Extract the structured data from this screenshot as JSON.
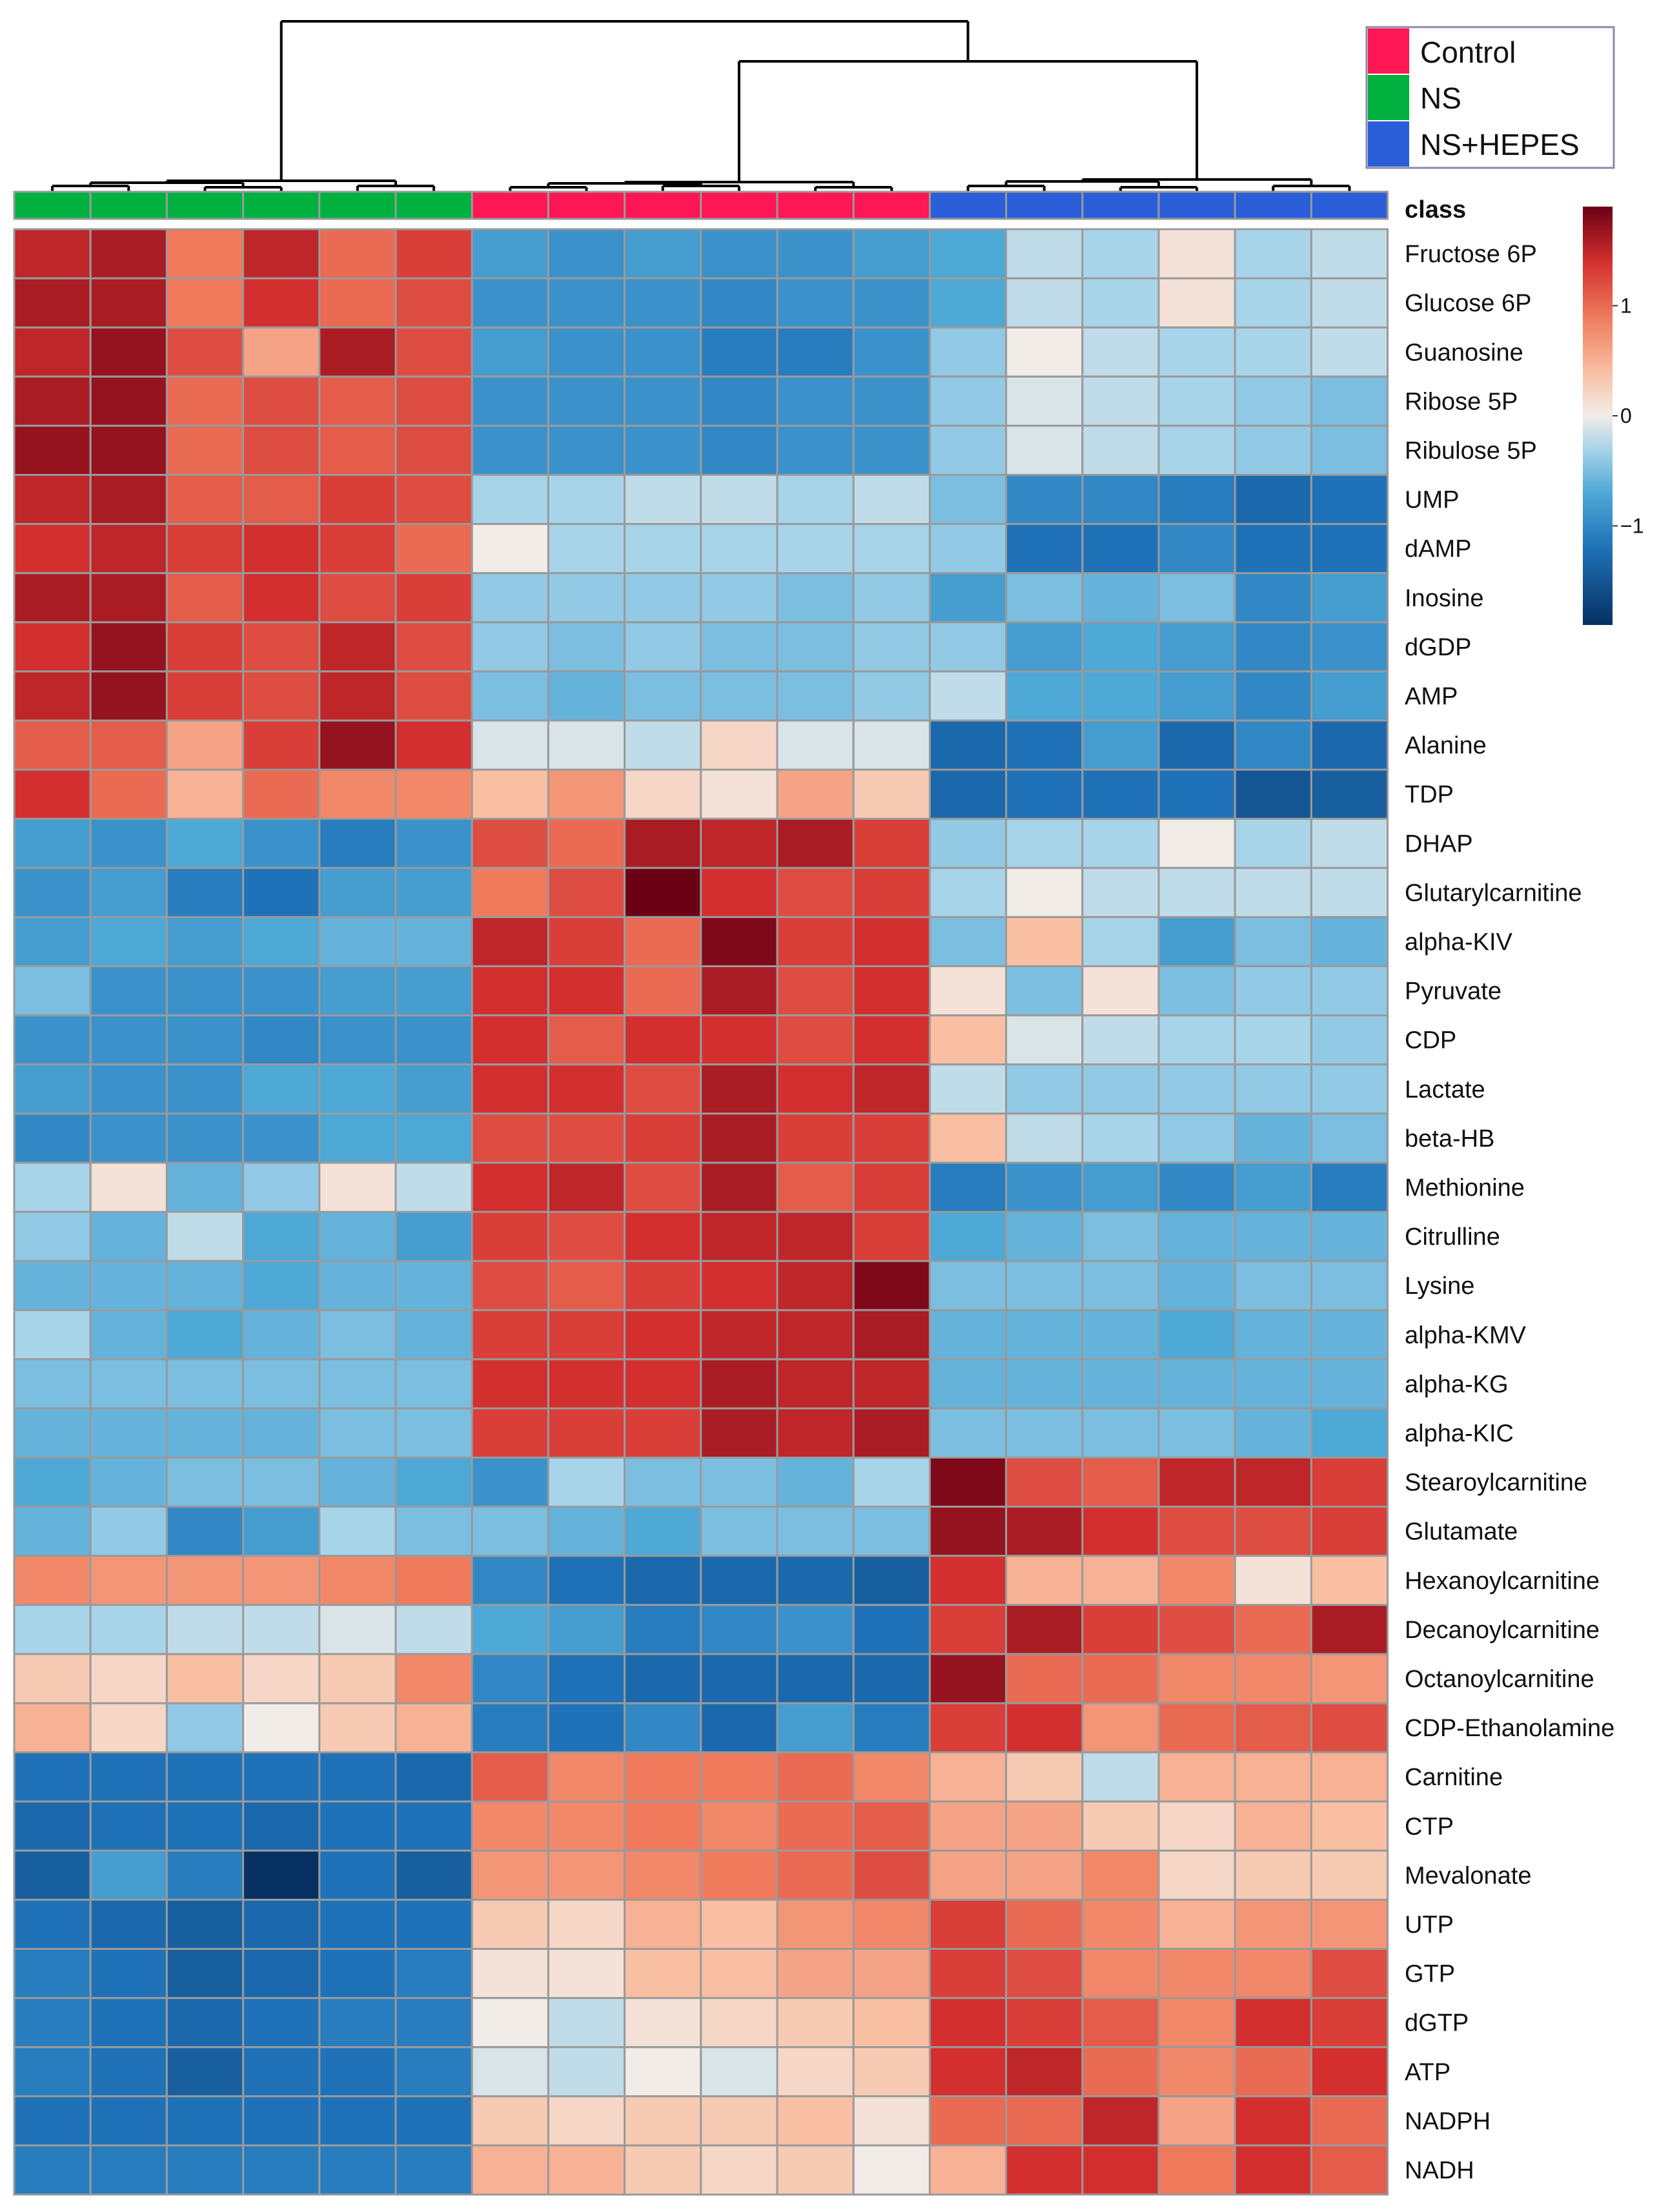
{
  "chart_data": {
    "type": "heatmap",
    "title": "",
    "class_label": "class",
    "groups": [
      {
        "name": "NS",
        "color": "#00b140"
      },
      {
        "name": "Control",
        "color": "#ff1654"
      },
      {
        "name": "NS+HEPES",
        "color": "#2a5fd9"
      }
    ],
    "legend_order": [
      "Control",
      "NS",
      "NS+HEPES"
    ],
    "column_groups": [
      "NS",
      "NS",
      "NS",
      "NS",
      "NS",
      "NS",
      "Control",
      "Control",
      "Control",
      "Control",
      "Control",
      "Control",
      "NS+HEPES",
      "NS+HEPES",
      "NS+HEPES",
      "NS+HEPES",
      "NS+HEPES",
      "NS+HEPES"
    ],
    "color_scale": {
      "min": -1.9,
      "max": 1.9,
      "ticks": [
        1,
        0,
        -1
      ],
      "tick_labels": [
        "1",
        "0",
        "−1"
      ],
      "stops": [
        {
          "v": -1.9,
          "c": "#053061"
        },
        {
          "v": -1.2,
          "c": "#1f72b8"
        },
        {
          "v": -0.7,
          "c": "#4ea8d6"
        },
        {
          "v": -0.3,
          "c": "#a8d4ea"
        },
        {
          "v": 0.0,
          "c": "#f2ece8"
        },
        {
          "v": 0.4,
          "c": "#f9bfa3"
        },
        {
          "v": 0.9,
          "c": "#ef7a5c"
        },
        {
          "v": 1.4,
          "c": "#d32f2f"
        },
        {
          "v": 1.9,
          "c": "#6b0014"
        }
      ]
    },
    "rows": [
      {
        "label": "Fructose 6P",
        "values": [
          1.5,
          1.6,
          0.9,
          1.5,
          1.0,
          1.3,
          -0.8,
          -0.9,
          -0.8,
          -0.9,
          -0.9,
          -0.8,
          -0.7,
          -0.2,
          -0.3,
          0.1,
          -0.3,
          -0.2
        ]
      },
      {
        "label": "Glucose 6P",
        "values": [
          1.6,
          1.6,
          0.9,
          1.4,
          1.0,
          1.2,
          -0.9,
          -0.9,
          -0.9,
          -1.0,
          -0.9,
          -0.9,
          -0.7,
          -0.2,
          -0.3,
          0.1,
          -0.3,
          -0.2
        ]
      },
      {
        "label": "Guanosine",
        "values": [
          1.5,
          1.7,
          1.2,
          0.6,
          1.6,
          1.2,
          -0.8,
          -0.9,
          -0.9,
          -1.1,
          -1.1,
          -0.9,
          -0.4,
          0.0,
          -0.2,
          -0.3,
          -0.3,
          -0.2
        ]
      },
      {
        "label": "Ribose 5P",
        "values": [
          1.6,
          1.7,
          1.0,
          1.2,
          1.1,
          1.2,
          -0.9,
          -0.9,
          -0.9,
          -1.0,
          -0.9,
          -0.9,
          -0.4,
          -0.1,
          -0.2,
          -0.3,
          -0.4,
          -0.5
        ]
      },
      {
        "label": "Ribulose 5P",
        "values": [
          1.7,
          1.7,
          1.0,
          1.2,
          1.1,
          1.2,
          -0.9,
          -0.9,
          -0.9,
          -1.0,
          -0.9,
          -0.9,
          -0.4,
          -0.1,
          -0.2,
          -0.3,
          -0.4,
          -0.5
        ]
      },
      {
        "label": "UMP",
        "values": [
          1.5,
          1.6,
          1.1,
          1.1,
          1.3,
          1.2,
          -0.3,
          -0.3,
          -0.2,
          -0.2,
          -0.3,
          -0.2,
          -0.5,
          -1.0,
          -1.0,
          -1.1,
          -1.3,
          -1.2
        ]
      },
      {
        "label": "dAMP",
        "values": [
          1.4,
          1.5,
          1.3,
          1.4,
          1.3,
          1.0,
          0.0,
          -0.3,
          -0.3,
          -0.3,
          -0.3,
          -0.3,
          -0.4,
          -1.2,
          -1.2,
          -1.0,
          -1.2,
          -1.2
        ]
      },
      {
        "label": "Inosine",
        "values": [
          1.6,
          1.6,
          1.1,
          1.4,
          1.2,
          1.3,
          -0.4,
          -0.4,
          -0.4,
          -0.4,
          -0.5,
          -0.4,
          -0.8,
          -0.5,
          -0.6,
          -0.5,
          -1.0,
          -0.8
        ]
      },
      {
        "label": "dGDP",
        "values": [
          1.4,
          1.7,
          1.3,
          1.2,
          1.5,
          1.2,
          -0.4,
          -0.5,
          -0.4,
          -0.5,
          -0.5,
          -0.4,
          -0.4,
          -0.8,
          -0.7,
          -0.8,
          -1.0,
          -0.9
        ]
      },
      {
        "label": "AMP",
        "values": [
          1.5,
          1.7,
          1.3,
          1.2,
          1.5,
          1.2,
          -0.5,
          -0.6,
          -0.5,
          -0.5,
          -0.5,
          -0.4,
          -0.2,
          -0.7,
          -0.7,
          -0.8,
          -1.0,
          -0.8
        ]
      },
      {
        "label": "Alanine",
        "values": [
          1.1,
          1.1,
          0.6,
          1.3,
          1.7,
          1.4,
          -0.1,
          -0.1,
          -0.2,
          0.2,
          -0.1,
          -0.1,
          -1.3,
          -1.2,
          -0.8,
          -1.3,
          -1.0,
          -1.3
        ]
      },
      {
        "label": "TDP",
        "values": [
          1.4,
          1.0,
          0.5,
          1.0,
          0.8,
          0.8,
          0.4,
          0.7,
          0.2,
          0.1,
          0.6,
          0.3,
          -1.3,
          -1.2,
          -1.2,
          -1.2,
          -1.5,
          -1.4
        ]
      },
      {
        "label": "DHAP",
        "values": [
          -0.8,
          -0.9,
          -0.7,
          -0.9,
          -1.1,
          -0.9,
          1.2,
          1.0,
          1.6,
          1.5,
          1.6,
          1.3,
          -0.4,
          -0.3,
          -0.3,
          0.0,
          -0.3,
          -0.2
        ]
      },
      {
        "label": "Glutarylcarnitine",
        "values": [
          -0.9,
          -0.8,
          -1.1,
          -1.2,
          -0.8,
          -0.8,
          0.9,
          1.2,
          1.9,
          1.4,
          1.2,
          1.3,
          -0.3,
          0.0,
          -0.2,
          -0.2,
          -0.2,
          -0.2
        ]
      },
      {
        "label": "alpha-KIV",
        "values": [
          -0.8,
          -0.7,
          -0.8,
          -0.7,
          -0.6,
          -0.6,
          1.5,
          1.3,
          1.0,
          1.8,
          1.3,
          1.4,
          -0.5,
          0.4,
          -0.3,
          -0.8,
          -0.5,
          -0.6
        ]
      },
      {
        "label": "Pyruvate",
        "values": [
          -0.5,
          -0.9,
          -0.9,
          -0.9,
          -0.8,
          -0.8,
          1.4,
          1.4,
          1.0,
          1.6,
          1.2,
          1.4,
          0.1,
          -0.5,
          0.1,
          -0.5,
          -0.4,
          -0.4
        ]
      },
      {
        "label": "CDP",
        "values": [
          -0.9,
          -0.9,
          -0.9,
          -1.0,
          -0.9,
          -0.9,
          1.4,
          1.1,
          1.4,
          1.4,
          1.2,
          1.4,
          0.4,
          -0.1,
          -0.2,
          -0.3,
          -0.3,
          -0.4
        ]
      },
      {
        "label": "Lactate",
        "values": [
          -0.8,
          -0.9,
          -0.9,
          -0.7,
          -0.7,
          -0.8,
          1.4,
          1.4,
          1.2,
          1.6,
          1.4,
          1.5,
          -0.2,
          -0.4,
          -0.4,
          -0.4,
          -0.4,
          -0.4
        ]
      },
      {
        "label": "beta-HB",
        "values": [
          -1.0,
          -0.9,
          -0.9,
          -0.9,
          -0.7,
          -0.7,
          1.2,
          1.2,
          1.3,
          1.6,
          1.3,
          1.3,
          0.4,
          -0.2,
          -0.3,
          -0.4,
          -0.6,
          -0.5
        ]
      },
      {
        "label": "Methionine",
        "values": [
          -0.3,
          0.1,
          -0.6,
          -0.4,
          0.1,
          -0.2,
          1.4,
          1.5,
          1.2,
          1.6,
          1.1,
          1.3,
          -1.1,
          -0.9,
          -0.8,
          -1.0,
          -0.8,
          -1.1
        ]
      },
      {
        "label": "Citrulline",
        "values": [
          -0.4,
          -0.6,
          -0.2,
          -0.7,
          -0.6,
          -0.8,
          1.3,
          1.2,
          1.4,
          1.5,
          1.5,
          1.3,
          -0.7,
          -0.6,
          -0.5,
          -0.6,
          -0.6,
          -0.6
        ]
      },
      {
        "label": "Lysine",
        "values": [
          -0.6,
          -0.6,
          -0.6,
          -0.7,
          -0.6,
          -0.6,
          1.2,
          1.1,
          1.3,
          1.4,
          1.5,
          1.8,
          -0.5,
          -0.5,
          -0.5,
          -0.6,
          -0.5,
          -0.5
        ]
      },
      {
        "label": "alpha-KMV",
        "values": [
          -0.3,
          -0.6,
          -0.7,
          -0.6,
          -0.5,
          -0.6,
          1.3,
          1.3,
          1.4,
          1.5,
          1.5,
          1.6,
          -0.6,
          -0.6,
          -0.6,
          -0.7,
          -0.6,
          -0.6
        ]
      },
      {
        "label": "alpha-KG",
        "values": [
          -0.5,
          -0.5,
          -0.5,
          -0.5,
          -0.5,
          -0.5,
          1.4,
          1.4,
          1.4,
          1.6,
          1.5,
          1.5,
          -0.6,
          -0.6,
          -0.6,
          -0.6,
          -0.6,
          -0.6
        ]
      },
      {
        "label": "alpha-KIC",
        "values": [
          -0.6,
          -0.6,
          -0.6,
          -0.6,
          -0.5,
          -0.5,
          1.3,
          1.3,
          1.3,
          1.6,
          1.5,
          1.6,
          -0.5,
          -0.5,
          -0.5,
          -0.5,
          -0.6,
          -0.7
        ]
      },
      {
        "label": "Stearoylcarnitine",
        "values": [
          -0.7,
          -0.6,
          -0.5,
          -0.5,
          -0.6,
          -0.7,
          -0.9,
          -0.3,
          -0.5,
          -0.5,
          -0.6,
          -0.3,
          1.8,
          1.2,
          1.1,
          1.5,
          1.5,
          1.3
        ]
      },
      {
        "label": "Glutamate",
        "values": [
          -0.6,
          -0.4,
          -1.0,
          -0.8,
          -0.3,
          -0.5,
          -0.5,
          -0.6,
          -0.7,
          -0.5,
          -0.5,
          -0.5,
          1.7,
          1.6,
          1.4,
          1.2,
          1.2,
          1.3
        ]
      },
      {
        "label": "Hexanoylcarnitine",
        "values": [
          0.8,
          0.7,
          0.7,
          0.7,
          0.8,
          0.9,
          -1.0,
          -1.2,
          -1.3,
          -1.3,
          -1.3,
          -1.4,
          1.4,
          0.5,
          0.5,
          0.8,
          0.1,
          0.4
        ]
      },
      {
        "label": "Decanoylcarnitine",
        "values": [
          -0.3,
          -0.3,
          -0.2,
          -0.2,
          -0.1,
          -0.2,
          -0.7,
          -0.8,
          -1.1,
          -1.0,
          -0.9,
          -1.2,
          1.3,
          1.6,
          1.3,
          1.2,
          1.0,
          1.6
        ]
      },
      {
        "label": "Octanoylcarnitine",
        "values": [
          0.3,
          0.2,
          0.4,
          0.2,
          0.3,
          0.8,
          -1.0,
          -1.2,
          -1.3,
          -1.3,
          -1.3,
          -1.3,
          1.7,
          1.0,
          1.0,
          0.8,
          0.8,
          0.7
        ]
      },
      {
        "label": "CDP-Ethanolamine",
        "values": [
          0.5,
          0.2,
          -0.4,
          0.0,
          0.3,
          0.5,
          -1.1,
          -1.2,
          -1.0,
          -1.3,
          -0.8,
          -1.1,
          1.3,
          1.4,
          0.7,
          1.0,
          1.1,
          1.2
        ]
      },
      {
        "label": "Carnitine",
        "values": [
          -1.2,
          -1.2,
          -1.2,
          -1.2,
          -1.2,
          -1.3,
          1.1,
          0.8,
          0.9,
          0.9,
          1.0,
          0.8,
          0.5,
          0.3,
          -0.2,
          0.5,
          0.5,
          0.5
        ]
      },
      {
        "label": "CTP",
        "values": [
          -1.3,
          -1.2,
          -1.2,
          -1.3,
          -1.2,
          -1.2,
          0.8,
          0.8,
          0.9,
          0.8,
          1.0,
          1.1,
          0.6,
          0.6,
          0.3,
          0.2,
          0.5,
          0.4
        ]
      },
      {
        "label": "Mevalonate",
        "values": [
          -1.4,
          -0.8,
          -1.1,
          -1.9,
          -1.2,
          -1.4,
          0.7,
          0.7,
          0.8,
          0.9,
          1.0,
          1.2,
          0.6,
          0.6,
          0.8,
          0.2,
          0.3,
          0.3
        ]
      },
      {
        "label": "UTP",
        "values": [
          -1.2,
          -1.3,
          -1.4,
          -1.3,
          -1.2,
          -1.2,
          0.3,
          0.2,
          0.5,
          0.4,
          0.7,
          0.8,
          1.3,
          1.0,
          0.8,
          0.5,
          0.7,
          0.7
        ]
      },
      {
        "label": "GTP",
        "values": [
          -1.1,
          -1.2,
          -1.4,
          -1.3,
          -1.2,
          -1.1,
          0.1,
          0.1,
          0.4,
          0.4,
          0.6,
          0.6,
          1.3,
          1.2,
          0.8,
          0.8,
          0.8,
          1.2
        ]
      },
      {
        "label": "dGTP",
        "values": [
          -1.1,
          -1.2,
          -1.3,
          -1.2,
          -1.1,
          -1.1,
          0.0,
          -0.2,
          0.1,
          0.2,
          0.3,
          0.4,
          1.4,
          1.3,
          1.1,
          0.8,
          1.4,
          1.3
        ]
      },
      {
        "label": "ATP",
        "values": [
          -1.1,
          -1.2,
          -1.4,
          -1.2,
          -1.2,
          -1.1,
          -0.1,
          -0.2,
          0.0,
          -0.1,
          0.2,
          0.3,
          1.4,
          1.5,
          1.0,
          0.8,
          1.0,
          1.4
        ]
      },
      {
        "label": "NADPH",
        "values": [
          -1.2,
          -1.2,
          -1.2,
          -1.2,
          -1.2,
          -1.2,
          0.3,
          0.2,
          0.3,
          0.3,
          0.4,
          0.1,
          1.0,
          1.0,
          1.5,
          0.6,
          1.4,
          1.0
        ]
      },
      {
        "label": "NADH",
        "values": [
          -1.1,
          -1.1,
          -1.1,
          -1.1,
          -1.1,
          -1.1,
          0.5,
          0.5,
          0.3,
          0.2,
          0.3,
          0.0,
          0.5,
          1.4,
          1.4,
          0.9,
          1.4,
          1.1
        ]
      }
    ]
  }
}
